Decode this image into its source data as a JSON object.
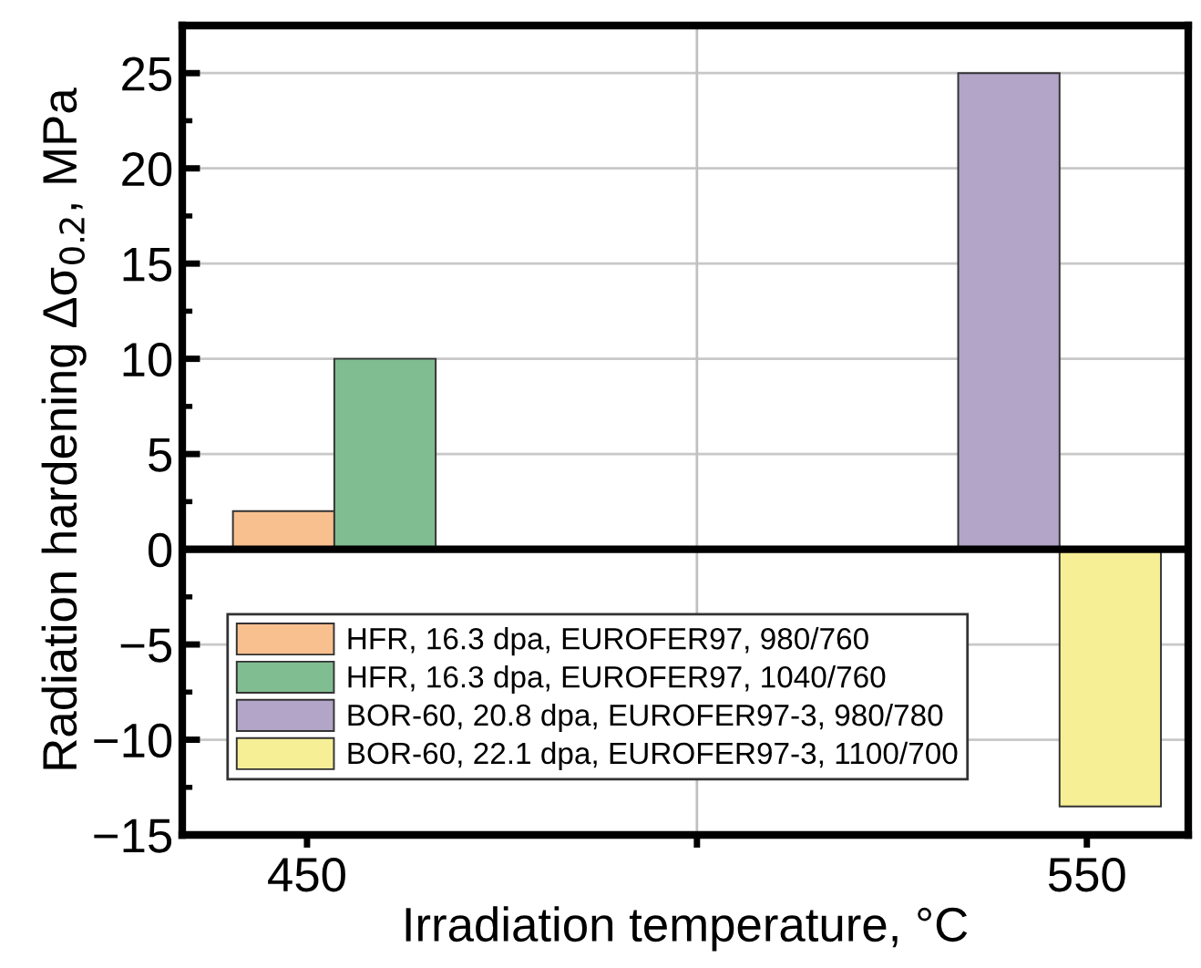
{
  "chart_data": {
    "type": "bar",
    "xlabel": "Irradiation temperature, °C",
    "ylabel": "Radiation hardening Δσ$_{0.2}$, MPa",
    "series": [
      {
        "name": "HFR, 16.3 dpa, EUROFER97, 980/760",
        "color": "#f9c08f",
        "x": [
          447
        ],
        "values": [
          2
        ]
      },
      {
        "name": "HFR, 16.3 dpa, EUROFER97, 1040/760",
        "color": "#80bd91",
        "x": [
          460
        ],
        "values": [
          10
        ]
      },
      {
        "name": "BOR-60, 20.8 dpa, EUROFER97-3, 980/780",
        "color": "#b3a5c8",
        "x": [
          540
        ],
        "values": [
          25
        ]
      },
      {
        "name": "BOR-60, 22.1 dpa, EUROFER97-3, 1100/700",
        "color": "#f7ef96",
        "x": [
          553
        ],
        "values": [
          -13.5
        ]
      }
    ],
    "xlim": [
      434,
      563
    ],
    "xticks": [
      450,
      {
        "value": 500,
        "label": null
      },
      550
    ],
    "ylim": [
      -15,
      27.5
    ],
    "yticks": [
      -15,
      -10,
      -5,
      0,
      5,
      10,
      15,
      20,
      25
    ],
    "grid": "y",
    "legend": "bottom left",
    "ref_lines": [
      {
        "axis": "x",
        "value": 500,
        "color": "#c0c0c0"
      },
      {
        "axis": "y",
        "value": 0,
        "color": "#000000"
      }
    ]
  }
}
